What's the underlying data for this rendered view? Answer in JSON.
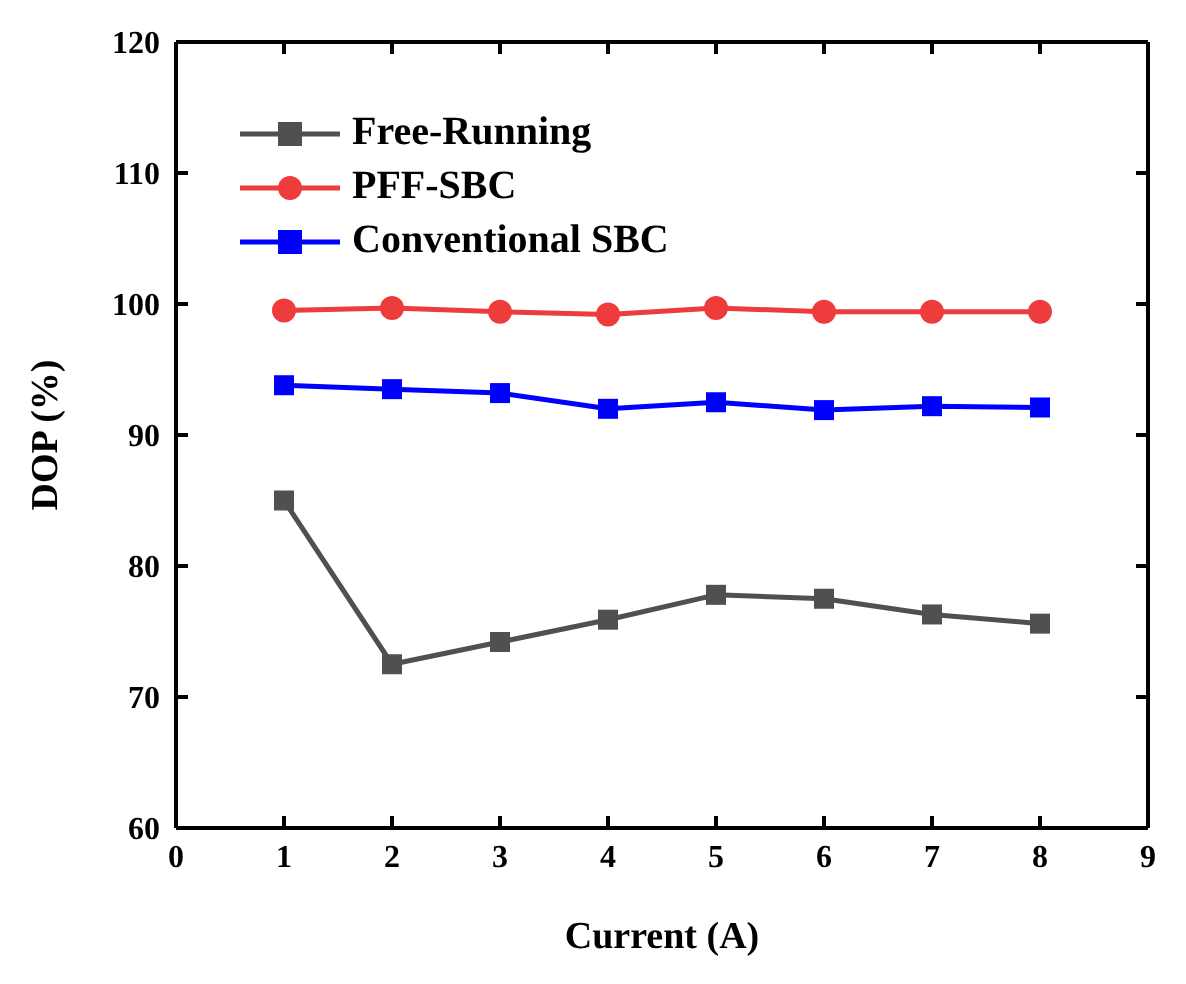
{
  "chart_data": {
    "type": "line",
    "xlabel": "Current (A)",
    "ylabel": "DOP (%)",
    "x": [
      1,
      2,
      3,
      4,
      5,
      6,
      7,
      8
    ],
    "xlim": [
      0,
      9
    ],
    "xticks": [
      0,
      1,
      2,
      3,
      4,
      5,
      6,
      7,
      8,
      9
    ],
    "ylim": [
      60,
      120
    ],
    "yticks": [
      60,
      70,
      80,
      90,
      100,
      110,
      120
    ],
    "grid": false,
    "legend": "top left",
    "line_style": "solid",
    "series": [
      {
        "name": "Free-Running",
        "color": "#505050",
        "marker": "square",
        "values": [
          85,
          72.5,
          74.2,
          75.9,
          77.8,
          77.5,
          76.3,
          75.6
        ]
      },
      {
        "name": "PFF-SBC",
        "color": "#ee3b3b",
        "marker": "circle",
        "values": [
          99.5,
          99.7,
          99.4,
          99.2,
          99.7,
          99.4,
          99.4,
          99.4
        ]
      },
      {
        "name": "Conventional SBC",
        "color": "#0000ff",
        "marker": "square",
        "values": [
          93.8,
          93.5,
          93.2,
          92.0,
          92.5,
          91.9,
          92.2,
          92.1
        ]
      }
    ]
  }
}
